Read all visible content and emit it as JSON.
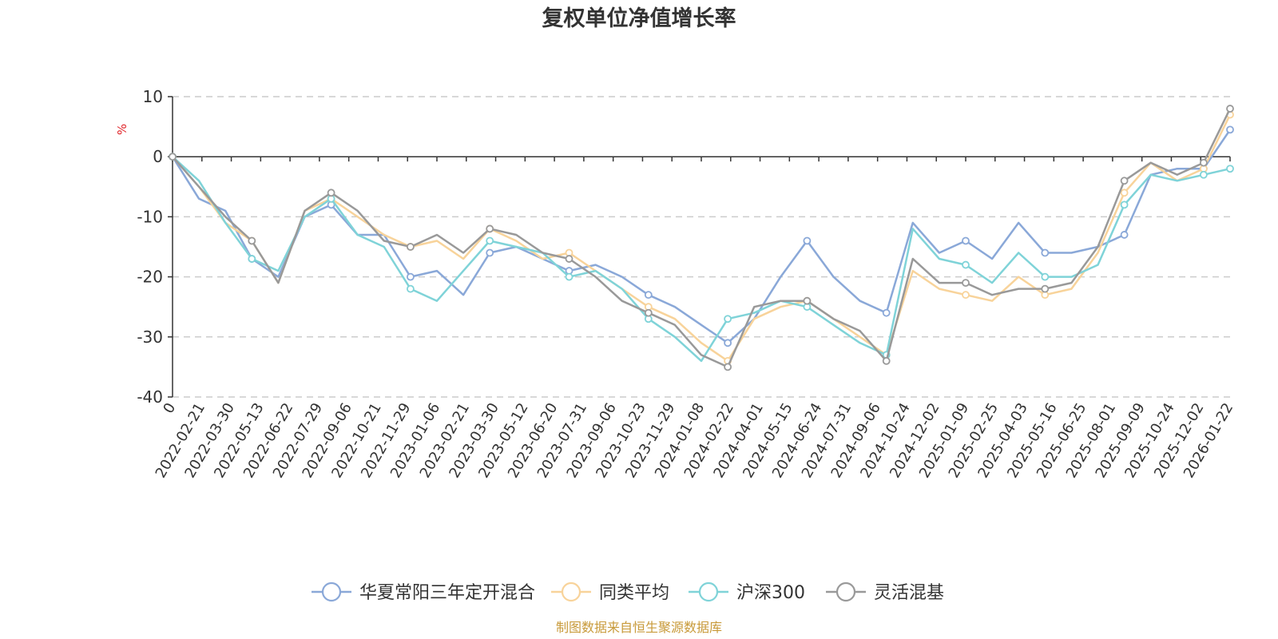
{
  "chart_data": {
    "type": "line",
    "title": "复权单位净值增长率",
    "ylabel": "%",
    "ylim": [
      -40,
      10
    ],
    "yticks": [
      10,
      0,
      -10,
      -20,
      -30,
      -40
    ],
    "grid": true,
    "legend_position": "bottom",
    "x_tick_labels": [
      "0",
      "2022-02-21",
      "2022-03-30",
      "2022-05-13",
      "2022-06-22",
      "2022-07-29",
      "2022-09-06",
      "2022-10-21",
      "2022-11-29",
      "2023-01-06",
      "2023-02-21",
      "2023-03-30",
      "2023-05-12",
      "2023-06-20",
      "2023-07-31",
      "2023-09-06",
      "2023-10-23",
      "2023-11-29",
      "2024-01-08",
      "2024-02-22",
      "2024-04-01",
      "2024-05-15",
      "2024-06-24",
      "2024-07-31",
      "2024-09-06",
      "2024-10-24",
      "2024-12-02",
      "2025-01-09",
      "2025-02-25",
      "2025-04-03",
      "2025-05-16",
      "2025-06-25",
      "2025-08-01",
      "2025-09-09",
      "2025-10-24",
      "2025-12-02",
      "2026-01-22"
    ],
    "series": [
      {
        "name": "华夏常阳三年定开混合",
        "color": "#8aa8d8",
        "values": [
          0,
          -7,
          -9,
          -17,
          -20,
          -10,
          -8,
          -13,
          -13,
          -20,
          -19,
          -23,
          -16,
          -15,
          -17,
          -19,
          -18,
          -20,
          -23,
          -25,
          -28,
          -31,
          -27,
          -20,
          -14,
          -20,
          -24,
          -26,
          -11,
          -16,
          -14,
          -17,
          -11,
          -16,
          -16,
          -15,
          -13,
          -3,
          -2,
          -2,
          4.5
        ]
      },
      {
        "name": "同类平均",
        "color": "#f8d39a",
        "values": [
          0,
          -5,
          -11,
          -14,
          -21,
          -9,
          -7,
          -10,
          -13,
          -15,
          -14,
          -17,
          -12,
          -14,
          -17,
          -16,
          -19,
          -22,
          -25,
          -27,
          -31,
          -34,
          -27,
          -25,
          -24,
          -27,
          -30,
          -33,
          -19,
          -22,
          -23,
          -24,
          -20,
          -23,
          -22,
          -16,
          -6,
          -1,
          -4,
          -2,
          7
        ]
      },
      {
        "name": "沪深300",
        "color": "#7fd3d8",
        "values": [
          0,
          -4,
          -11,
          -17,
          -19,
          -10,
          -7,
          -13,
          -15,
          -22,
          -24,
          -19,
          -14,
          -15,
          -16,
          -20,
          -19,
          -22,
          -27,
          -30,
          -34,
          -27,
          -26,
          -24,
          -25,
          -28,
          -31,
          -33,
          -12,
          -17,
          -18,
          -21,
          -16,
          -20,
          -20,
          -18,
          -8,
          -3,
          -4,
          -3,
          -2
        ]
      },
      {
        "name": "灵活混基",
        "color": "#999999",
        "values": [
          0,
          -5,
          -10,
          -14,
          -21,
          -9,
          -6,
          -9,
          -14,
          -15,
          -13,
          -16,
          -12,
          -13,
          -16,
          -17,
          -20,
          -24,
          -26,
          -28,
          -33,
          -35,
          -25,
          -24,
          -24,
          -27,
          -29,
          -34,
          -17,
          -21,
          -21,
          -23,
          -22,
          -22,
          -21,
          -15,
          -4,
          -1,
          -3,
          -1,
          8
        ]
      }
    ],
    "source": "制图数据来自恒生聚源数据库"
  }
}
